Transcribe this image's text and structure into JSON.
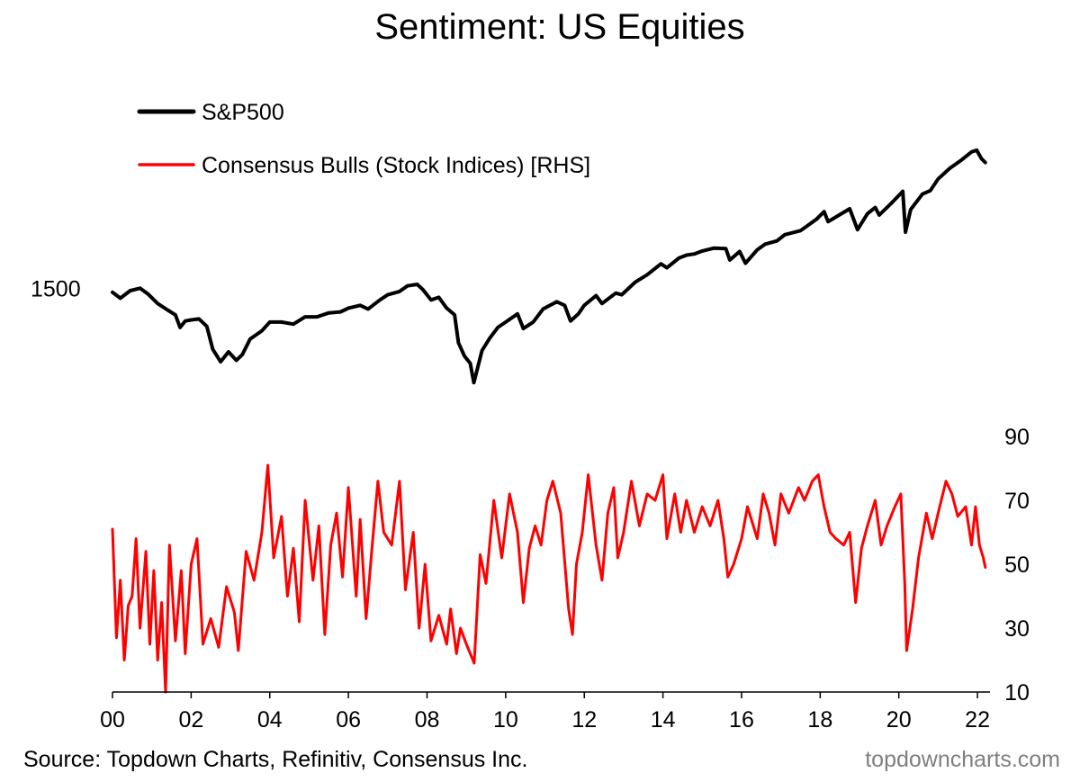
{
  "title": "Sentiment: US Equities",
  "source": "Source: Topdown Charts, Refinitiv, Consensus Inc.",
  "credit": "topdowncharts.com",
  "colors": {
    "sp500": "#000000",
    "bulls": "#ff0000",
    "axis": "#000000",
    "credit": "#7f7f7f"
  },
  "chart_data": {
    "type": "line",
    "title": "Sentiment: US Equities",
    "x_tick_labels": [
      "00",
      "02",
      "04",
      "06",
      "08",
      "10",
      "12",
      "14",
      "16",
      "18",
      "20",
      "22"
    ],
    "x_ticks": [
      2000,
      2002,
      2004,
      2006,
      2008,
      2010,
      2012,
      2014,
      2016,
      2018,
      2020,
      2022
    ],
    "xlim": [
      2000,
      2022.25
    ],
    "left_axis": {
      "scale": "log",
      "tick_labels": [
        "1500"
      ],
      "ticks": [
        1500
      ],
      "ylim": [
        450,
        8200
      ]
    },
    "right_axis": {
      "tick_labels": [
        "10",
        "30",
        "50",
        "70",
        "90"
      ],
      "ticks": [
        10,
        30,
        50,
        70,
        90
      ],
      "ylim": [
        10,
        90
      ]
    },
    "legend": [
      "S&P500",
      "Consensus Bulls (Stock Indices) [RHS]"
    ],
    "series": [
      {
        "name": "S&P500",
        "axis": "left",
        "points": [
          [
            2000.0,
            1450
          ],
          [
            2000.2,
            1380
          ],
          [
            2000.45,
            1470
          ],
          [
            2000.7,
            1500
          ],
          [
            2000.9,
            1430
          ],
          [
            2001.15,
            1320
          ],
          [
            2001.4,
            1250
          ],
          [
            2001.6,
            1200
          ],
          [
            2001.72,
            1080
          ],
          [
            2001.85,
            1140
          ],
          [
            2002.0,
            1150
          ],
          [
            2002.2,
            1160
          ],
          [
            2002.4,
            1090
          ],
          [
            2002.55,
            900
          ],
          [
            2002.75,
            810
          ],
          [
            2002.95,
            880
          ],
          [
            2003.15,
            820
          ],
          [
            2003.3,
            860
          ],
          [
            2003.5,
            980
          ],
          [
            2003.8,
            1050
          ],
          [
            2004.0,
            1130
          ],
          [
            2004.3,
            1130
          ],
          [
            2004.6,
            1110
          ],
          [
            2004.9,
            1180
          ],
          [
            2005.2,
            1180
          ],
          [
            2005.5,
            1220
          ],
          [
            2005.8,
            1230
          ],
          [
            2006.0,
            1270
          ],
          [
            2006.3,
            1300
          ],
          [
            2006.5,
            1260
          ],
          [
            2006.8,
            1360
          ],
          [
            2007.0,
            1420
          ],
          [
            2007.3,
            1460
          ],
          [
            2007.5,
            1530
          ],
          [
            2007.75,
            1550
          ],
          [
            2007.9,
            1480
          ],
          [
            2008.1,
            1360
          ],
          [
            2008.3,
            1390
          ],
          [
            2008.5,
            1270
          ],
          [
            2008.7,
            1200
          ],
          [
            2008.8,
            950
          ],
          [
            2008.95,
            850
          ],
          [
            2009.1,
            800
          ],
          [
            2009.19,
            680
          ],
          [
            2009.4,
            890
          ],
          [
            2009.6,
            990
          ],
          [
            2009.8,
            1080
          ],
          [
            2010.0,
            1130
          ],
          [
            2010.3,
            1210
          ],
          [
            2010.45,
            1070
          ],
          [
            2010.7,
            1130
          ],
          [
            2010.95,
            1260
          ],
          [
            2011.3,
            1340
          ],
          [
            2011.5,
            1300
          ],
          [
            2011.65,
            1140
          ],
          [
            2011.85,
            1210
          ],
          [
            2012.0,
            1300
          ],
          [
            2012.3,
            1410
          ],
          [
            2012.45,
            1320
          ],
          [
            2012.8,
            1440
          ],
          [
            2012.95,
            1420
          ],
          [
            2013.3,
            1580
          ],
          [
            2013.6,
            1680
          ],
          [
            2013.95,
            1840
          ],
          [
            2014.1,
            1780
          ],
          [
            2014.4,
            1930
          ],
          [
            2014.6,
            1980
          ],
          [
            2014.8,
            2000
          ],
          [
            2015.0,
            2050
          ],
          [
            2015.3,
            2100
          ],
          [
            2015.6,
            2090
          ],
          [
            2015.7,
            1900
          ],
          [
            2015.95,
            2040
          ],
          [
            2016.1,
            1850
          ],
          [
            2016.4,
            2070
          ],
          [
            2016.6,
            2170
          ],
          [
            2016.9,
            2230
          ],
          [
            2017.1,
            2350
          ],
          [
            2017.5,
            2430
          ],
          [
            2017.9,
            2670
          ],
          [
            2018.1,
            2850
          ],
          [
            2018.2,
            2620
          ],
          [
            2018.5,
            2780
          ],
          [
            2018.75,
            2920
          ],
          [
            2018.95,
            2450
          ],
          [
            2019.2,
            2800
          ],
          [
            2019.4,
            2950
          ],
          [
            2019.5,
            2770
          ],
          [
            2019.8,
            3050
          ],
          [
            2020.1,
            3380
          ],
          [
            2020.17,
            2400
          ],
          [
            2020.3,
            2900
          ],
          [
            2020.6,
            3300
          ],
          [
            2020.8,
            3400
          ],
          [
            2021.0,
            3750
          ],
          [
            2021.3,
            4100
          ],
          [
            2021.6,
            4400
          ],
          [
            2021.85,
            4700
          ],
          [
            2021.98,
            4770
          ],
          [
            2022.1,
            4450
          ],
          [
            2022.2,
            4300
          ]
        ]
      },
      {
        "name": "Consensus Bulls (Stock Indices) [RHS]",
        "axis": "right",
        "points": [
          [
            2000.0,
            61
          ],
          [
            2000.1,
            27
          ],
          [
            2000.2,
            45
          ],
          [
            2000.3,
            20
          ],
          [
            2000.4,
            37
          ],
          [
            2000.5,
            40
          ],
          [
            2000.6,
            58
          ],
          [
            2000.7,
            30
          ],
          [
            2000.85,
            54
          ],
          [
            2000.95,
            25
          ],
          [
            2001.05,
            48
          ],
          [
            2001.15,
            20
          ],
          [
            2001.25,
            38
          ],
          [
            2001.35,
            10
          ],
          [
            2001.45,
            56
          ],
          [
            2001.6,
            26
          ],
          [
            2001.75,
            48
          ],
          [
            2001.85,
            22
          ],
          [
            2002.0,
            50
          ],
          [
            2002.15,
            58
          ],
          [
            2002.3,
            25
          ],
          [
            2002.5,
            33
          ],
          [
            2002.7,
            24
          ],
          [
            2002.9,
            43
          ],
          [
            2003.1,
            35
          ],
          [
            2003.2,
            23
          ],
          [
            2003.4,
            54
          ],
          [
            2003.6,
            45
          ],
          [
            2003.8,
            60
          ],
          [
            2003.95,
            81
          ],
          [
            2004.1,
            52
          ],
          [
            2004.3,
            65
          ],
          [
            2004.45,
            40
          ],
          [
            2004.6,
            55
          ],
          [
            2004.75,
            32
          ],
          [
            2004.9,
            70
          ],
          [
            2005.1,
            45
          ],
          [
            2005.25,
            62
          ],
          [
            2005.4,
            28
          ],
          [
            2005.55,
            56
          ],
          [
            2005.7,
            66
          ],
          [
            2005.85,
            46
          ],
          [
            2006.0,
            74
          ],
          [
            2006.2,
            40
          ],
          [
            2006.3,
            64
          ],
          [
            2006.45,
            33
          ],
          [
            2006.6,
            55
          ],
          [
            2006.75,
            76
          ],
          [
            2006.9,
            60
          ],
          [
            2007.1,
            56
          ],
          [
            2007.3,
            76
          ],
          [
            2007.45,
            42
          ],
          [
            2007.65,
            60
          ],
          [
            2007.8,
            30
          ],
          [
            2007.95,
            50
          ],
          [
            2008.1,
            26
          ],
          [
            2008.3,
            34
          ],
          [
            2008.5,
            25
          ],
          [
            2008.6,
            36
          ],
          [
            2008.75,
            22
          ],
          [
            2008.85,
            30
          ],
          [
            2009.0,
            25
          ],
          [
            2009.2,
            19
          ],
          [
            2009.35,
            53
          ],
          [
            2009.5,
            44
          ],
          [
            2009.7,
            70
          ],
          [
            2009.9,
            52
          ],
          [
            2010.1,
            72
          ],
          [
            2010.3,
            60
          ],
          [
            2010.45,
            38
          ],
          [
            2010.6,
            55
          ],
          [
            2010.75,
            62
          ],
          [
            2010.9,
            56
          ],
          [
            2011.05,
            70
          ],
          [
            2011.2,
            76
          ],
          [
            2011.4,
            66
          ],
          [
            2011.6,
            36
          ],
          [
            2011.7,
            28
          ],
          [
            2011.8,
            50
          ],
          [
            2011.95,
            60
          ],
          [
            2012.1,
            78
          ],
          [
            2012.3,
            56
          ],
          [
            2012.45,
            45
          ],
          [
            2012.6,
            66
          ],
          [
            2012.75,
            74
          ],
          [
            2012.85,
            52
          ],
          [
            2013.0,
            60
          ],
          [
            2013.2,
            76
          ],
          [
            2013.4,
            62
          ],
          [
            2013.6,
            72
          ],
          [
            2013.8,
            70
          ],
          [
            2014.0,
            78
          ],
          [
            2014.1,
            58
          ],
          [
            2014.3,
            72
          ],
          [
            2014.45,
            60
          ],
          [
            2014.6,
            70
          ],
          [
            2014.8,
            60
          ],
          [
            2015.0,
            68
          ],
          [
            2015.2,
            62
          ],
          [
            2015.4,
            70
          ],
          [
            2015.55,
            58
          ],
          [
            2015.65,
            46
          ],
          [
            2015.8,
            50
          ],
          [
            2016.0,
            58
          ],
          [
            2016.15,
            68
          ],
          [
            2016.4,
            58
          ],
          [
            2016.55,
            72
          ],
          [
            2016.7,
            66
          ],
          [
            2016.85,
            56
          ],
          [
            2017.0,
            72
          ],
          [
            2017.2,
            66
          ],
          [
            2017.45,
            74
          ],
          [
            2017.6,
            70
          ],
          [
            2017.8,
            76
          ],
          [
            2017.95,
            78
          ],
          [
            2018.1,
            68
          ],
          [
            2018.25,
            60
          ],
          [
            2018.4,
            58
          ],
          [
            2018.6,
            56
          ],
          [
            2018.75,
            60
          ],
          [
            2018.9,
            38
          ],
          [
            2019.05,
            55
          ],
          [
            2019.2,
            62
          ],
          [
            2019.4,
            70
          ],
          [
            2019.55,
            56
          ],
          [
            2019.7,
            62
          ],
          [
            2019.9,
            68
          ],
          [
            2020.05,
            72
          ],
          [
            2020.15,
            44
          ],
          [
            2020.2,
            23
          ],
          [
            2020.35,
            36
          ],
          [
            2020.5,
            52
          ],
          [
            2020.7,
            66
          ],
          [
            2020.85,
            58
          ],
          [
            2021.0,
            66
          ],
          [
            2021.2,
            76
          ],
          [
            2021.35,
            72
          ],
          [
            2021.5,
            65
          ],
          [
            2021.7,
            68
          ],
          [
            2021.85,
            56
          ],
          [
            2021.95,
            68
          ],
          [
            2022.05,
            56
          ],
          [
            2022.15,
            52
          ],
          [
            2022.2,
            49
          ]
        ]
      }
    ]
  }
}
